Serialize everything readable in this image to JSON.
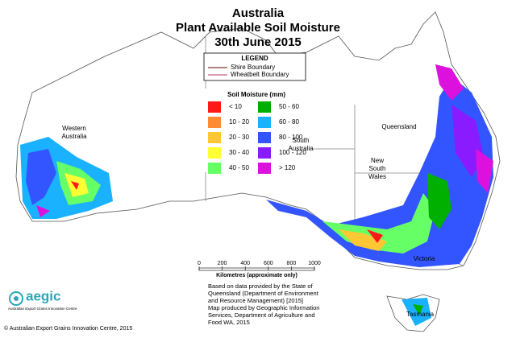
{
  "title": [
    "Australia",
    "Plant Available Soil Moisture",
    "30th June 2015"
  ],
  "legend": {
    "heading": "LEGEND",
    "boundaries": [
      {
        "label": "Shire Boundary",
        "color": "#7a3b3b"
      },
      {
        "label": "Wheatbelt Boundary",
        "color": "#c06080"
      }
    ],
    "scale_title": "Soil Moisture (mm)",
    "items": [
      {
        "label": "< 10",
        "color": "#ff1a1a"
      },
      {
        "label": "10 - 20",
        "color": "#ff8c33"
      },
      {
        "label": "20 - 30",
        "color": "#ffc733"
      },
      {
        "label": "30 - 40",
        "color": "#ffff33"
      },
      {
        "label": "40 - 50",
        "color": "#66ff66"
      },
      {
        "label": "50 - 60",
        "color": "#00b000"
      },
      {
        "label": "60 - 80",
        "color": "#1ab2ff"
      },
      {
        "label": "80 - 100",
        "color": "#3355ff"
      },
      {
        "label": "100 - 120",
        "color": "#8a1aff"
      },
      {
        "label": "> 120",
        "color": "#dd11dd"
      }
    ]
  },
  "states": [
    {
      "lines": [
        "Western",
        "Australia"
      ]
    },
    {
      "lines": [
        "South",
        "Australia"
      ]
    },
    {
      "lines": [
        "Queensland"
      ]
    },
    {
      "lines": [
        "New",
        "South",
        "Wales"
      ]
    },
    {
      "lines": [
        "Victoria"
      ]
    },
    {
      "lines": [
        "Tasmania"
      ]
    }
  ],
  "scale_bar": {
    "ticks": [
      0,
      200,
      400,
      600,
      800,
      1000
    ],
    "label": "Kilometres (approximate only)"
  },
  "source": [
    "Based on data provided by the State of",
    "Queensland (Department of Environment",
    "and Resource Management) [2015]",
    "Map produced by Geographic Information",
    "Services, Department of Agriculture and",
    "Food WA, 2015"
  ],
  "logo": {
    "name": "aegic",
    "tagline": "Australian Export Grains Innovation Centre"
  },
  "copyright": "© Australian Export Grains Innovation Centre, 2015"
}
